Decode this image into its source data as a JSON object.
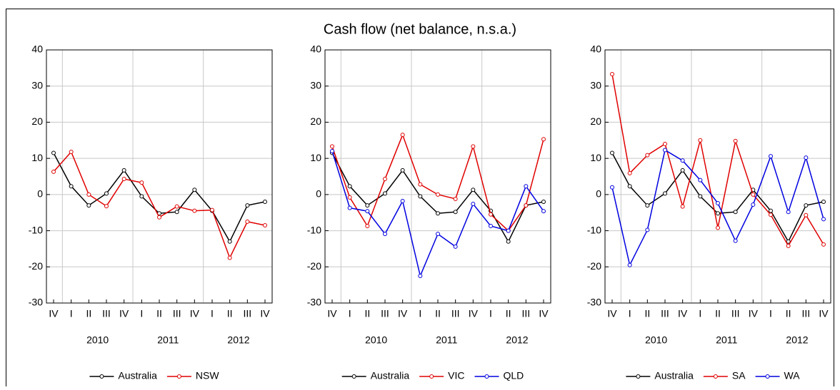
{
  "title": "Cash flow (net balance, n.s.a.)",
  "chart_data": [
    {
      "type": "line",
      "categories": [
        "IV",
        "I",
        "II",
        "III",
        "IV",
        "I",
        "II",
        "III",
        "IV",
        "I",
        "II",
        "III",
        "IV"
      ],
      "year_labels": [
        "2010",
        "2011",
        "2012"
      ],
      "ylim": [
        -30,
        40
      ],
      "yticks": [
        -30,
        -20,
        -10,
        0,
        10,
        20,
        30,
        40
      ],
      "grid": true,
      "series": [
        {
          "name": "Australia",
          "color": "#000000",
          "values": [
            11.5,
            2.3,
            -3,
            0.3,
            6.7,
            -0.5,
            -5.2,
            -4.8,
            1.3,
            -4.5,
            -13,
            -3,
            -2
          ]
        },
        {
          "name": "NSW",
          "color": "#e00000",
          "values": [
            6.3,
            11.8,
            0,
            -3.2,
            4.3,
            3.3,
            -6.3,
            -3.3,
            -4.5,
            -4.3,
            -17.5,
            -7.5,
            -8.5
          ]
        }
      ]
    },
    {
      "type": "line",
      "categories": [
        "IV",
        "I",
        "II",
        "III",
        "IV",
        "I",
        "II",
        "III",
        "IV",
        "I",
        "II",
        "III",
        "IV"
      ],
      "year_labels": [
        "2010",
        "2011",
        "2012"
      ],
      "ylim": [
        -30,
        40
      ],
      "yticks": [
        -30,
        -20,
        -10,
        0,
        10,
        20,
        30,
        40
      ],
      "grid": true,
      "series": [
        {
          "name": "Australia",
          "color": "#000000",
          "values": [
            11.5,
            2.3,
            -3,
            0.3,
            6.7,
            -0.5,
            -5.2,
            -4.8,
            1.3,
            -4.5,
            -13,
            -3,
            -2
          ]
        },
        {
          "name": "VIC",
          "color": "#e00000",
          "values": [
            13.3,
            -0.8,
            -8.7,
            4.3,
            16.5,
            2.8,
            0,
            -1.2,
            13.3,
            -5.5,
            -10,
            -3,
            15.3
          ]
        },
        {
          "name": "QLD",
          "color": "#0000e0",
          "values": [
            12,
            -3.7,
            -4.6,
            -10.9,
            -1.8,
            -22.5,
            -10.9,
            -14.4,
            -2.6,
            -8.7,
            -10,
            2.3,
            -4.6
          ]
        }
      ]
    },
    {
      "type": "line",
      "categories": [
        "IV",
        "I",
        "II",
        "III",
        "IV",
        "I",
        "II",
        "III",
        "IV",
        "I",
        "II",
        "III",
        "IV"
      ],
      "year_labels": [
        "2010",
        "2011",
        "2012"
      ],
      "ylim": [
        -30,
        40
      ],
      "yticks": [
        -30,
        -20,
        -10,
        0,
        10,
        20,
        30,
        40
      ],
      "grid": true,
      "series": [
        {
          "name": "Australia",
          "color": "#000000",
          "values": [
            11.5,
            2.3,
            -3,
            0.3,
            6.7,
            -0.5,
            -5.2,
            -4.8,
            1.3,
            -4.5,
            -13,
            -3,
            -2
          ]
        },
        {
          "name": "SA",
          "color": "#e00000",
          "values": [
            33.3,
            5.9,
            10.9,
            14,
            -3.3,
            15,
            -9.2,
            14.8,
            0,
            -5.6,
            -14.2,
            -5.7,
            -13.8
          ]
        },
        {
          "name": "WA",
          "color": "#0000e0",
          "values": [
            2,
            -19.5,
            -9.8,
            12.3,
            9.4,
            4,
            -2.4,
            -12.8,
            -2.8,
            10.6,
            -4.8,
            10.2,
            -6.8
          ]
        }
      ]
    }
  ]
}
